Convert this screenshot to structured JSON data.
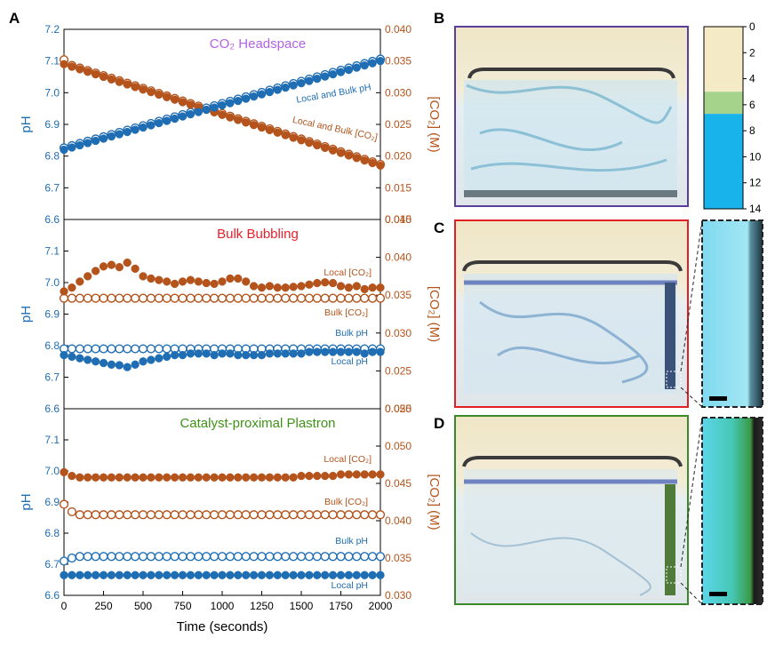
{
  "panels": [
    "A",
    "B",
    "C",
    "D"
  ],
  "chart_data": [
    {
      "type": "scatter",
      "title": "CO₂ Headspace",
      "title_color": "#b561e6",
      "ylabel": "pH",
      "y2label": "[CO₂] (M)",
      "xlim": [
        0,
        2000
      ],
      "ylim": [
        6.6,
        7.2
      ],
      "yticks": [
        6.6,
        6.7,
        6.8,
        6.9,
        {
          "value": 7,
          "label": "7.0"
        },
        7.1,
        7.2
      ],
      "y2lim": [
        0.01,
        0.04
      ],
      "y2ticks": [
        {
          "value": 0.01,
          "label": "0.010"
        },
        0.015,
        {
          "value": 0.02,
          "label": "0.020"
        },
        0.025,
        {
          "value": 0.03,
          "label": "0.030"
        },
        0.035,
        {
          "value": 0.04,
          "label": "0.040"
        }
      ],
      "annotations": [
        "Local and Bulk pH",
        "Local and Bulk [CO₂]"
      ],
      "x": [
        0,
        50,
        100,
        150,
        200,
        250,
        300,
        350,
        400,
        450,
        500,
        550,
        600,
        650,
        700,
        750,
        800,
        850,
        900,
        950,
        1000,
        1050,
        1100,
        1150,
        1200,
        1250,
        1300,
        1350,
        1400,
        1450,
        1500,
        1550,
        1600,
        1650,
        1700,
        1750,
        1800,
        1850,
        1900,
        1950,
        2000
      ],
      "series": [
        {
          "color": "#b4541c",
          "marker": "open",
          "axis": "y2",
          "values": [
            0.0352,
            0.0343,
            0.0339,
            0.0335,
            0.0331,
            0.0327,
            0.0323,
            0.0319,
            0.0315,
            0.0311,
            0.0307,
            0.0303,
            0.0299,
            0.0295,
            0.0291,
            0.0287,
            0.0283,
            0.0279,
            0.0275,
            0.0271,
            0.0267,
            0.0263,
            0.0259,
            0.0255,
            0.0251,
            0.0247,
            0.0243,
            0.0239,
            0.0235,
            0.0231,
            0.0227,
            0.0223,
            0.0219,
            0.0215,
            0.0211,
            0.0207,
            0.0203,
            0.0199,
            0.0195,
            0.0191,
            0.0187
          ]
        },
        {
          "color": "#1f6db3",
          "marker": "open",
          "axis": "y",
          "values": [
            6.826,
            6.833,
            6.84,
            6.847,
            6.854,
            6.861,
            6.868,
            6.875,
            6.882,
            6.889,
            6.896,
            6.903,
            6.91,
            6.917,
            6.924,
            6.931,
            6.938,
            6.945,
            6.952,
            6.959,
            6.966,
            6.973,
            6.98,
            6.987,
            6.994,
            7.001,
            7.008,
            7.015,
            7.022,
            7.029,
            7.036,
            7.043,
            7.05,
            7.057,
            7.064,
            7.071,
            7.078,
            7.085,
            7.092,
            7.099,
            7.106
          ]
        },
        {
          "color": "#b4541c",
          "marker": "filled",
          "axis": "y2",
          "values": [
            0.0345,
            0.0341,
            0.0337,
            0.0333,
            0.0329,
            0.0325,
            0.0321,
            0.0317,
            0.0313,
            0.0309,
            0.0305,
            0.0301,
            0.0297,
            0.0293,
            0.0289,
            0.0285,
            0.0281,
            0.0277,
            0.0273,
            0.0269,
            0.0265,
            0.0261,
            0.0257,
            0.0253,
            0.0249,
            0.0245,
            0.0241,
            0.0237,
            0.0233,
            0.0229,
            0.0225,
            0.0221,
            0.0217,
            0.0213,
            0.0209,
            0.0205,
            0.0201,
            0.0197,
            0.0193,
            0.0189,
            0.0185
          ]
        },
        {
          "color": "#1f6db3",
          "marker": "filled",
          "axis": "y",
          "values": [
            6.82,
            6.827,
            6.834,
            6.841,
            6.848,
            6.855,
            6.862,
            6.869,
            6.876,
            6.883,
            6.89,
            6.897,
            6.904,
            6.911,
            6.918,
            6.925,
            6.932,
            6.939,
            6.946,
            6.953,
            6.96,
            6.967,
            6.974,
            6.981,
            6.988,
            6.995,
            7.002,
            7.009,
            7.016,
            7.023,
            7.03,
            7.037,
            7.044,
            7.051,
            7.058,
            7.065,
            7.072,
            7.079,
            7.086,
            7.093,
            7.1
          ]
        }
      ]
    },
    {
      "type": "scatter",
      "title": "Bulk Bubbling",
      "title_color": "#e8202a",
      "ylabel": "pH",
      "y2label": "[CO₂] (M)",
      "xlim": [
        0,
        2000
      ],
      "ylim": [
        6.6,
        7.2
      ],
      "yticks": [
        6.6,
        6.7,
        6.8,
        6.9,
        {
          "value": 7,
          "label": "7.0"
        },
        7.1
      ],
      "y2lim": [
        0.02,
        0.045
      ],
      "y2ticks": [
        {
          "value": 0.02,
          "label": "0.020"
        },
        0.025,
        {
          "value": 0.03,
          "label": "0.030"
        },
        0.035,
        {
          "value": 0.04,
          "label": "0.040"
        },
        0.045
      ],
      "annotations": [
        "Local [CO₂]",
        "Bulk [CO₂]",
        "Bulk pH",
        "Local pH"
      ],
      "x": [
        0,
        50,
        100,
        150,
        200,
        250,
        300,
        350,
        400,
        450,
        500,
        550,
        600,
        650,
        700,
        750,
        800,
        850,
        900,
        950,
        1000,
        1050,
        1100,
        1150,
        1200,
        1250,
        1300,
        1350,
        1400,
        1450,
        1500,
        1550,
        1600,
        1650,
        1700,
        1750,
        1800,
        1850,
        1900,
        1950,
        2000
      ],
      "series": [
        {
          "color": "#b4541c",
          "marker": "open",
          "axis": "y2",
          "values": [
            0.0346,
            0.0346,
            0.0346,
            0.0346,
            0.0346,
            0.0346,
            0.0346,
            0.0346,
            0.0346,
            0.0346,
            0.0346,
            0.0346,
            0.0346,
            0.0346,
            0.0346,
            0.0346,
            0.0346,
            0.0346,
            0.0346,
            0.0346,
            0.0346,
            0.0346,
            0.0346,
            0.0346,
            0.0346,
            0.0346,
            0.0346,
            0.0346,
            0.0346,
            0.0346,
            0.0346,
            0.0346,
            0.0346,
            0.0346,
            0.0346,
            0.0346,
            0.0346,
            0.0346,
            0.0346,
            0.0346,
            0.0346
          ]
        },
        {
          "color": "#1f6db3",
          "marker": "open",
          "axis": "y",
          "values": [
            6.79,
            6.79,
            6.79,
            6.79,
            6.79,
            6.79,
            6.79,
            6.79,
            6.79,
            6.79,
            6.79,
            6.79,
            6.79,
            6.79,
            6.79,
            6.79,
            6.79,
            6.79,
            6.79,
            6.79,
            6.79,
            6.79,
            6.79,
            6.79,
            6.79,
            6.79,
            6.79,
            6.79,
            6.79,
            6.79,
            6.79,
            6.79,
            6.79,
            6.79,
            6.79,
            6.79,
            6.79,
            6.79,
            6.79,
            6.79,
            6.79
          ]
        },
        {
          "color": "#b4541c",
          "marker": "filled",
          "axis": "y2",
          "values": [
            0.0355,
            0.036,
            0.0368,
            0.0375,
            0.0382,
            0.0388,
            0.039,
            0.0387,
            0.0393,
            0.0385,
            0.0375,
            0.0372,
            0.037,
            0.0368,
            0.0365,
            0.0368,
            0.037,
            0.0368,
            0.0366,
            0.0365,
            0.0368,
            0.0372,
            0.0372,
            0.0368,
            0.0362,
            0.036,
            0.0362,
            0.036,
            0.036,
            0.0361,
            0.0362,
            0.0364,
            0.0366,
            0.0367,
            0.0366,
            0.0362,
            0.036,
            0.0362,
            0.0358,
            0.036,
            0.036
          ]
        },
        {
          "color": "#1f6db3",
          "marker": "filled",
          "axis": "y",
          "values": [
            6.77,
            6.765,
            6.76,
            6.755,
            6.75,
            6.745,
            6.74,
            6.738,
            6.732,
            6.74,
            6.75,
            6.755,
            6.76,
            6.765,
            6.77,
            6.77,
            6.775,
            6.775,
            6.775,
            6.77,
            6.775,
            6.775,
            6.77,
            6.77,
            6.77,
            6.77,
            6.775,
            6.775,
            6.775,
            6.775,
            6.775,
            6.78,
            6.78,
            6.78,
            6.78,
            6.78,
            6.78,
            6.78,
            6.775,
            6.78,
            6.78
          ]
        }
      ]
    },
    {
      "type": "scatter",
      "title": "Catalyst-proximal Plastron",
      "title_color": "#3e9216",
      "ylabel": "pH",
      "y2label": "[CO₂] (M)",
      "xlabel": "Time (seconds)",
      "xlim": [
        0,
        2000
      ],
      "xticks": [
        0,
        250,
        500,
        750,
        1000,
        1250,
        1500,
        1750,
        2000
      ],
      "ylim": [
        6.6,
        7.2
      ],
      "yticks": [
        6.6,
        6.7,
        6.8,
        6.9,
        {
          "value": 7,
          "label": "7.0"
        },
        7.1
      ],
      "y2lim": [
        0.03,
        0.055
      ],
      "y2ticks": [
        {
          "value": 0.03,
          "label": "0.030"
        },
        0.035,
        {
          "value": 0.04,
          "label": "0.040"
        },
        0.045,
        {
          "value": 0.05,
          "label": "0.050"
        },
        0.055
      ],
      "annotations": [
        "Local [CO₂]",
        "Bulk [CO₂]",
        "Bulk pH",
        "Local pH"
      ],
      "x": [
        0,
        50,
        100,
        150,
        200,
        250,
        300,
        350,
        400,
        450,
        500,
        550,
        600,
        650,
        700,
        750,
        800,
        850,
        900,
        950,
        1000,
        1050,
        1100,
        1150,
        1200,
        1250,
        1300,
        1350,
        1400,
        1450,
        1500,
        1550,
        1600,
        1650,
        1700,
        1750,
        1800,
        1850,
        1900,
        1950,
        2000
      ],
      "series": [
        {
          "color": "#b4541c",
          "marker": "open",
          "axis": "y2",
          "values": [
            0.0422,
            0.0412,
            0.0408,
            0.0408,
            0.0408,
            0.0408,
            0.0408,
            0.0408,
            0.0408,
            0.0408,
            0.0408,
            0.0408,
            0.0408,
            0.0408,
            0.0408,
            0.0408,
            0.0408,
            0.0408,
            0.0408,
            0.0408,
            0.0408,
            0.0408,
            0.0408,
            0.0408,
            0.0408,
            0.0408,
            0.0408,
            0.0408,
            0.0408,
            0.0408,
            0.0408,
            0.0408,
            0.0408,
            0.0408,
            0.0408,
            0.0408,
            0.0408,
            0.0408,
            0.0408,
            0.0408,
            0.0408
          ]
        },
        {
          "color": "#1f6db3",
          "marker": "open",
          "axis": "y",
          "values": [
            6.71,
            6.72,
            6.725,
            6.725,
            6.725,
            6.725,
            6.725,
            6.725,
            6.725,
            6.725,
            6.725,
            6.725,
            6.725,
            6.725,
            6.725,
            6.725,
            6.725,
            6.725,
            6.725,
            6.725,
            6.725,
            6.725,
            6.725,
            6.725,
            6.725,
            6.725,
            6.725,
            6.725,
            6.725,
            6.725,
            6.725,
            6.725,
            6.725,
            6.725,
            6.725,
            6.725,
            6.725,
            6.725,
            6.725,
            6.725,
            6.725
          ]
        },
        {
          "color": "#b4541c",
          "marker": "filled",
          "axis": "y2",
          "values": [
            0.0465,
            0.046,
            0.0458,
            0.0458,
            0.0458,
            0.0458,
            0.0458,
            0.0458,
            0.0458,
            0.0458,
            0.0458,
            0.0458,
            0.0458,
            0.0458,
            0.0458,
            0.0458,
            0.0458,
            0.0458,
            0.0458,
            0.0458,
            0.0458,
            0.0458,
            0.0458,
            0.0458,
            0.0458,
            0.0458,
            0.0458,
            0.0458,
            0.0458,
            0.0458,
            0.046,
            0.046,
            0.046,
            0.046,
            0.046,
            0.0462,
            0.0462,
            0.0462,
            0.0462,
            0.0462,
            0.0462
          ]
        },
        {
          "color": "#1f6db3",
          "marker": "filled",
          "axis": "y",
          "values": [
            6.665,
            6.665,
            6.665,
            6.665,
            6.665,
            6.665,
            6.665,
            6.665,
            6.665,
            6.665,
            6.665,
            6.665,
            6.665,
            6.665,
            6.665,
            6.665,
            6.665,
            6.665,
            6.665,
            6.665,
            6.665,
            6.665,
            6.665,
            6.665,
            6.665,
            6.665,
            6.665,
            6.665,
            6.665,
            6.665,
            6.665,
            6.665,
            6.665,
            6.665,
            6.665,
            6.665,
            6.665,
            6.665,
            6.665,
            6.665,
            6.665
          ]
        }
      ]
    }
  ],
  "colorbar": {
    "lim": [
      0,
      14
    ],
    "ticks": [
      0,
      2,
      4,
      6,
      8,
      10,
      12,
      14
    ],
    "bands": [
      {
        "from": 0,
        "to": 5,
        "color": "#f4eac6"
      },
      {
        "from": 5,
        "to": 6.7,
        "color": "#a6d38c"
      },
      {
        "from": 6.7,
        "to": 14,
        "color": "#18b3ea"
      }
    ]
  }
}
